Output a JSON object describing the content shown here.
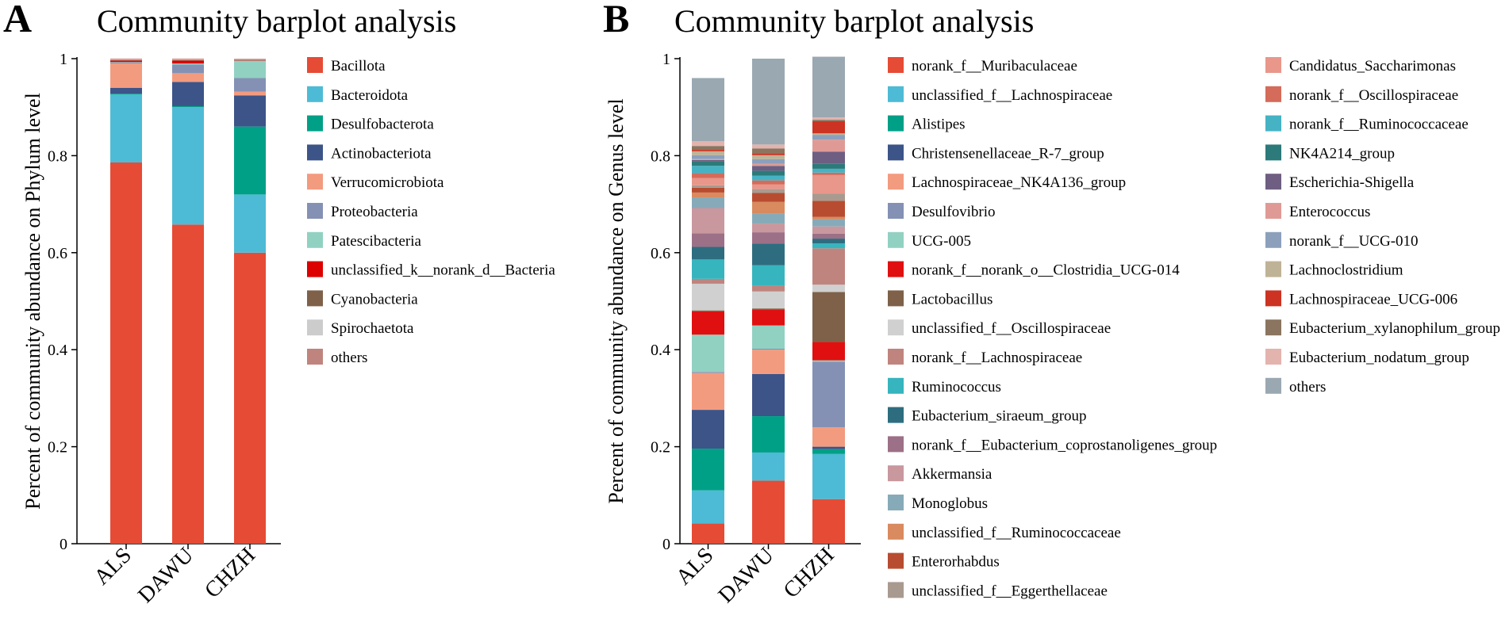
{
  "chart_data": [
    {
      "panel": "A",
      "type": "bar",
      "stacked": true,
      "title": "Community barplot analysis",
      "xlabel": "",
      "ylabel": "Percent of community abundance on Phylum level",
      "ylim": [
        0,
        1
      ],
      "yticks": [
        0,
        0.2,
        0.4,
        0.6,
        0.8,
        1
      ],
      "ytick_labels": [
        "0",
        "0.2",
        "0.4",
        "0.6",
        "0.8",
        "1"
      ],
      "categories": [
        "ALS",
        "DAWU",
        "CHZH"
      ],
      "legend_position": "right",
      "series": [
        {
          "name": "Bacillota",
          "color": "#E64B35",
          "values": [
            0.786,
            0.658,
            0.6
          ]
        },
        {
          "name": "Bacteroidota",
          "color": "#4DBBD5",
          "values": [
            0.14,
            0.242,
            0.12
          ]
        },
        {
          "name": "Desulfobacterota",
          "color": "#00A087",
          "values": [
            0.002,
            0.002,
            0.14
          ]
        },
        {
          "name": "Actinobacteriota",
          "color": "#3C5488",
          "values": [
            0.012,
            0.05,
            0.064
          ]
        },
        {
          "name": "Verrucomicrobiota",
          "color": "#F39B7F",
          "values": [
            0.05,
            0.018,
            0.008
          ]
        },
        {
          "name": "Proteobacteria",
          "color": "#8491B4",
          "values": [
            0.002,
            0.018,
            0.028
          ]
        },
        {
          "name": "Patescibacteria",
          "color": "#91D1C2",
          "values": [
            0.001,
            0.002,
            0.036
          ]
        },
        {
          "name": "unclassified_k__norank_d__Bacteria",
          "color": "#DC0000",
          "values": [
            0.003,
            0.006,
            0.001
          ]
        },
        {
          "name": "Cyanobacteria",
          "color": "#7E6148",
          "values": [
            0.001,
            0.001,
            0.001
          ]
        },
        {
          "name": "Spirochaetota",
          "color": "#CCCCCC",
          "values": [
            0.001,
            0.001,
            0.001
          ]
        },
        {
          "name": "others",
          "color": "#C0847E",
          "values": [
            0.002,
            0.002,
            0.001
          ]
        }
      ]
    },
    {
      "panel": "B",
      "type": "bar",
      "stacked": true,
      "title": "Community barplot analysis",
      "xlabel": "",
      "ylabel": "Percent of community abundance on Genus level",
      "ylim": [
        0,
        1
      ],
      "yticks": [
        0,
        0.2,
        0.4,
        0.6,
        0.8,
        1
      ],
      "ytick_labels": [
        "0",
        "0.2",
        "0.4",
        "0.6",
        "0.8",
        "1"
      ],
      "categories": [
        "ALS",
        "DAWU",
        "CHZH"
      ],
      "legend_position": "right",
      "series": [
        {
          "name": "norank_f__Muribaculaceae",
          "color": "#E64B35",
          "values": [
            0.042,
            0.13,
            0.092
          ]
        },
        {
          "name": "unclassified_f__Lachnospiraceae",
          "color": "#4DBBD5",
          "values": [
            0.068,
            0.058,
            0.093
          ]
        },
        {
          "name": "Alistipes",
          "color": "#00A087",
          "values": [
            0.086,
            0.075,
            0.01
          ]
        },
        {
          "name": "Christensenellaceae_R-7_group",
          "color": "#3C5488",
          "values": [
            0.08,
            0.087,
            0.005
          ]
        },
        {
          "name": "Lachnospiraceae_NK4A136_group",
          "color": "#F39B7F",
          "values": [
            0.076,
            0.05,
            0.04
          ]
        },
        {
          "name": "Desulfovibrio",
          "color": "#8491B4",
          "values": [
            0.002,
            0.002,
            0.135
          ]
        },
        {
          "name": "UCG-005",
          "color": "#91D1C2",
          "values": [
            0.077,
            0.048,
            0.003
          ]
        },
        {
          "name": "norank_f__norank_o__Clostridia_UCG-014",
          "color": "#E01010",
          "values": [
            0.048,
            0.032,
            0.038
          ]
        },
        {
          "name": "Lactobacillus",
          "color": "#7E6148",
          "values": [
            0.002,
            0.003,
            0.103
          ]
        },
        {
          "name": "unclassified_f__Oscillospiraceae",
          "color": "#D0D0D0",
          "values": [
            0.055,
            0.035,
            0.015
          ]
        },
        {
          "name": "norank_f__Lachnospiraceae",
          "color": "#C0847E",
          "values": [
            0.01,
            0.012,
            0.075
          ]
        },
        {
          "name": "Ruminococcus",
          "color": "#36B5BE",
          "values": [
            0.04,
            0.042,
            0.01
          ]
        },
        {
          "name": "Eubacterium_siraeum_group",
          "color": "#2E6D80",
          "values": [
            0.026,
            0.045,
            0.01
          ]
        },
        {
          "name": "norank_f__Eubacterium_coprostanoligenes_group",
          "color": "#9C7087",
          "values": [
            0.028,
            0.023,
            0.01
          ]
        },
        {
          "name": "Akkermansia",
          "color": "#C9979E",
          "values": [
            0.052,
            0.018,
            0.015
          ]
        },
        {
          "name": "Monoglobus",
          "color": "#87AAB9",
          "values": [
            0.022,
            0.02,
            0.015
          ]
        },
        {
          "name": "unclassified_f__Ruminococcaceae",
          "color": "#D98A5F",
          "values": [
            0.01,
            0.025,
            0.005
          ]
        },
        {
          "name": "Enterorhabdus",
          "color": "#B84C30",
          "values": [
            0.01,
            0.018,
            0.033
          ]
        },
        {
          "name": "unclassified_f__Eggerthellaceae",
          "color": "#A99A8F",
          "values": [
            0.005,
            0.008,
            0.015
          ]
        },
        {
          "name": "Candidatus_Saccharimonas",
          "color": "#E8978A",
          "values": [
            0.015,
            0.01,
            0.038
          ]
        },
        {
          "name": "norank_f__Oscillospiraceae",
          "color": "#D56B5A",
          "values": [
            0.01,
            0.008,
            0.005
          ]
        },
        {
          "name": "norank_f__Ruminococcaceae",
          "color": "#45B3C4",
          "values": [
            0.015,
            0.01,
            0.008
          ]
        },
        {
          "name": "NK4A214_group",
          "color": "#2C7A7A",
          "values": [
            0.01,
            0.01,
            0.01
          ]
        },
        {
          "name": "Escherichia-Shigella",
          "color": "#6E5E82",
          "values": [
            0.002,
            0.01,
            0.025
          ]
        },
        {
          "name": "Enterococcus",
          "color": "#E09A95",
          "values": [
            0.002,
            0.004,
            0.025
          ]
        },
        {
          "name": "norank_f__UCG-010",
          "color": "#8CA0BC",
          "values": [
            0.008,
            0.01,
            0.01
          ]
        },
        {
          "name": "Lachnoclostridium",
          "color": "#BFB397",
          "values": [
            0.008,
            0.008,
            0.003
          ]
        },
        {
          "name": "Lachnospiraceae_UCG-006",
          "color": "#CC3322",
          "values": [
            0.003,
            0.004,
            0.025
          ]
        },
        {
          "name": "Eubacterium_xylanophilum_group",
          "color": "#8B7560",
          "values": [
            0.008,
            0.01,
            0.003
          ]
        },
        {
          "name": "Eubacterium_nodatum_group",
          "color": "#E3B3AE",
          "values": [
            0.01,
            0.008,
            0.005
          ]
        },
        {
          "name": "others",
          "color": "#9AA8B2",
          "values": [
            0.13,
            0.177,
            0.125
          ]
        }
      ]
    }
  ]
}
